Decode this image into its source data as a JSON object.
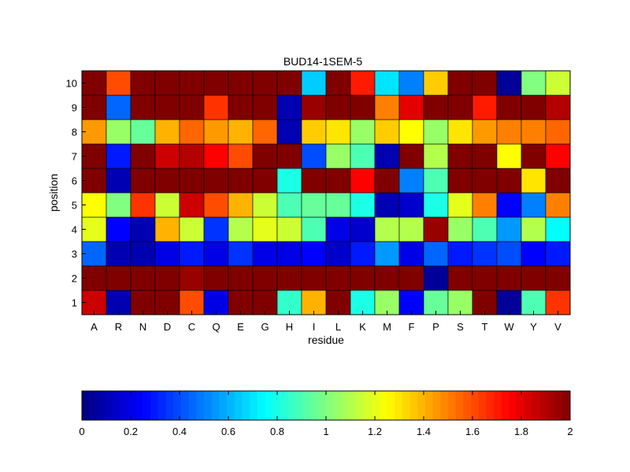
{
  "chart_data": {
    "type": "heatmap",
    "title": "BUD14-1SEM-5",
    "xlabel": "residue",
    "ylabel": "position",
    "x_categories": [
      "A",
      "R",
      "N",
      "D",
      "C",
      "Q",
      "E",
      "G",
      "H",
      "I",
      "L",
      "K",
      "M",
      "F",
      "P",
      "S",
      "T",
      "W",
      "Y",
      "V"
    ],
    "y_categories": [
      "1",
      "2",
      "3",
      "4",
      "5",
      "6",
      "7",
      "8",
      "9",
      "10"
    ],
    "values": [
      [
        1.85,
        0.1,
        2.0,
        2.0,
        1.6,
        0.2,
        2.0,
        2.0,
        0.85,
        1.4,
        2.0,
        0.8,
        1.05,
        0.25,
        0.95,
        1.05,
        2.0,
        0.05,
        0.9,
        1.65
      ],
      [
        2.0,
        2.0,
        2.0,
        2.0,
        1.95,
        2.0,
        2.0,
        2.0,
        2.0,
        2.0,
        2.0,
        2.0,
        2.0,
        2.0,
        0.05,
        2.0,
        2.0,
        2.0,
        2.0,
        2.0
      ],
      [
        0.45,
        0.1,
        0.1,
        0.2,
        0.3,
        0.2,
        0.35,
        0.2,
        0.2,
        0.25,
        0.15,
        0.3,
        0.55,
        0.2,
        0.45,
        0.3,
        0.35,
        0.4,
        0.25,
        0.3
      ],
      [
        1.2,
        0.25,
        0.1,
        1.4,
        1.15,
        0.35,
        1.1,
        1.2,
        1.15,
        0.9,
        0.2,
        0.15,
        1.1,
        1.1,
        1.95,
        1.05,
        0.9,
        0.55,
        1.1,
        0.75
      ],
      [
        1.25,
        1.0,
        1.65,
        1.15,
        1.85,
        1.6,
        1.4,
        1.15,
        0.9,
        0.95,
        0.95,
        0.8,
        0.1,
        0.15,
        0.8,
        1.2,
        1.5,
        0.25,
        0.5,
        1.5
      ],
      [
        2.0,
        0.1,
        2.0,
        2.0,
        2.0,
        2.0,
        2.0,
        2.0,
        0.8,
        2.0,
        2.0,
        1.75,
        2.0,
        0.5,
        0.9,
        2.0,
        2.0,
        2.0,
        1.3,
        2.0
      ],
      [
        2.0,
        0.3,
        2.0,
        1.85,
        1.9,
        1.75,
        1.6,
        2.0,
        2.0,
        0.4,
        1.05,
        0.9,
        0.1,
        2.0,
        1.1,
        2.0,
        2.0,
        1.25,
        2.0,
        1.75
      ],
      [
        1.45,
        1.05,
        0.95,
        1.4,
        1.55,
        1.45,
        1.4,
        1.55,
        0.1,
        1.35,
        1.3,
        1.05,
        1.35,
        1.25,
        1.05,
        1.3,
        1.45,
        1.5,
        1.5,
        1.55
      ],
      [
        2.0,
        0.45,
        2.0,
        2.0,
        2.0,
        1.65,
        2.0,
        2.0,
        0.1,
        1.95,
        2.0,
        2.0,
        1.5,
        1.8,
        2.0,
        2.0,
        1.7,
        2.0,
        2.0,
        1.9
      ],
      [
        2.0,
        1.6,
        2.0,
        2.0,
        2.0,
        2.0,
        2.0,
        2.0,
        2.0,
        0.65,
        2.0,
        1.7,
        0.7,
        0.5,
        1.35,
        2.0,
        2.0,
        0.05,
        1.0,
        1.15
      ]
    ],
    "colorbar": {
      "min": 0,
      "max": 2,
      "ticks": [
        "0",
        "0.2",
        "0.4",
        "0.6",
        "0.8",
        "1",
        "1.2",
        "1.4",
        "1.6",
        "1.8",
        "2"
      ],
      "colormap": "jet"
    }
  }
}
